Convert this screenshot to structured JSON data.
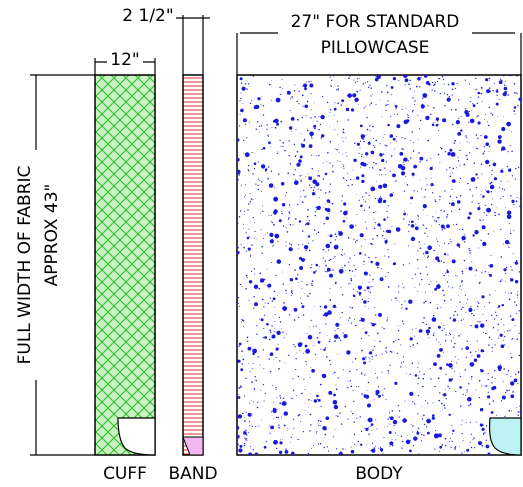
{
  "dimensions": {
    "band_width": "2 1/2\"",
    "cuff_width": "12\"",
    "body_width": "27\" FOR STANDARD",
    "body_width_note": "PILLOWCASE",
    "fabric_width": "FULL WIDTH OF FABRIC",
    "fabric_width_note": "APPROX 43\""
  },
  "labels": {
    "cuff": "CUFF",
    "band": "BAND",
    "body": "BODY"
  }
}
